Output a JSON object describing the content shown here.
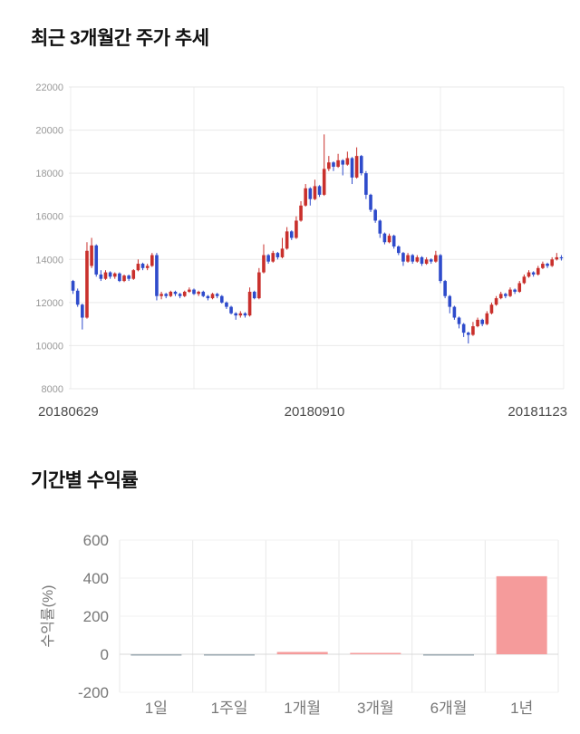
{
  "page": {
    "price_section_title": "최근 3개월간 주가 추세",
    "returns_section_title": "기간별 수익률"
  },
  "chart_data": [
    {
      "type": "candlestick",
      "title": "최근 3개월간 주가 추세",
      "x_tick_labels": [
        "20180629",
        "20180910",
        "20181123"
      ],
      "ylim": [
        8000,
        22000
      ],
      "y_ticks": [
        8000,
        10000,
        12000,
        14000,
        16000,
        18000,
        20000,
        22000
      ],
      "up_color": "#c9302c",
      "down_color": "#2e4bcb",
      "grid": true,
      "candles_format": "[open, high, low, close]",
      "candles": [
        [
          13000,
          13050,
          12400,
          12550
        ],
        [
          12550,
          12650,
          11800,
          11900
        ],
        [
          11900,
          11950,
          10750,
          11300
        ],
        [
          11300,
          14800,
          11250,
          14400
        ],
        [
          13700,
          15000,
          13600,
          14650
        ],
        [
          14650,
          14700,
          13200,
          13300
        ],
        [
          13300,
          13500,
          13000,
          13100
        ],
        [
          13100,
          13500,
          13050,
          13400
        ],
        [
          13400,
          13450,
          13100,
          13200
        ],
        [
          13200,
          13400,
          13100,
          13350
        ],
        [
          13350,
          13400,
          12950,
          13000
        ],
        [
          13000,
          13300,
          12950,
          13250
        ],
        [
          13250,
          13300,
          13000,
          13100
        ],
        [
          13100,
          13550,
          13050,
          13500
        ],
        [
          13500,
          14000,
          13450,
          13800
        ],
        [
          13800,
          13850,
          13500,
          13600
        ],
        [
          13600,
          13800,
          13500,
          13700
        ],
        [
          13700,
          14300,
          13650,
          14200
        ],
        [
          14200,
          14300,
          12100,
          12300
        ],
        [
          12300,
          12500,
          12150,
          12400
        ],
        [
          12400,
          12450,
          12200,
          12300
        ],
        [
          12300,
          12550,
          12250,
          12500
        ],
        [
          12500,
          12550,
          12300,
          12400
        ],
        [
          12400,
          12450,
          12200,
          12300
        ],
        [
          12300,
          12550,
          12250,
          12500
        ],
        [
          12500,
          12700,
          12450,
          12600
        ],
        [
          12600,
          12650,
          12350,
          12400
        ],
        [
          12400,
          12550,
          12300,
          12500
        ],
        [
          12500,
          12550,
          12250,
          12300
        ],
        [
          12300,
          12350,
          12100,
          12200
        ],
        [
          12200,
          12450,
          12150,
          12400
        ],
        [
          12400,
          12450,
          12200,
          12300
        ],
        [
          12300,
          12350,
          11950,
          12000
        ],
        [
          12000,
          12050,
          11700,
          11800
        ],
        [
          11800,
          11850,
          11450,
          11500
        ],
        [
          11500,
          11550,
          11200,
          11400
        ],
        [
          11400,
          11600,
          11300,
          11500
        ],
        [
          11500,
          11550,
          11300,
          11400
        ],
        [
          11400,
          12700,
          11350,
          12500
        ],
        [
          12500,
          12550,
          12150,
          12200
        ],
        [
          12200,
          13600,
          12150,
          13400
        ],
        [
          13400,
          14700,
          13350,
          14200
        ],
        [
          14200,
          14250,
          13800,
          13900
        ],
        [
          13900,
          14400,
          13850,
          14300
        ],
        [
          14300,
          14350,
          14000,
          14100
        ],
        [
          14100,
          15000,
          14050,
          14500
        ],
        [
          14500,
          15500,
          14450,
          15300
        ],
        [
          15300,
          15350,
          14900,
          15000
        ],
        [
          15000,
          16000,
          14950,
          15800
        ],
        [
          15800,
          16700,
          15750,
          16500
        ],
        [
          16500,
          17500,
          16450,
          17300
        ],
        [
          17300,
          17350,
          16500,
          16800
        ],
        [
          16800,
          17700,
          16750,
          17400
        ],
        [
          17400,
          17450,
          16900,
          17000
        ],
        [
          17000,
          19800,
          16950,
          18200
        ],
        [
          18200,
          18800,
          18100,
          18500
        ],
        [
          18500,
          18550,
          18100,
          18300
        ],
        [
          18300,
          18900,
          18250,
          18600
        ],
        [
          18600,
          18650,
          17900,
          18400
        ],
        [
          18400,
          19000,
          18350,
          18700
        ],
        [
          18700,
          18750,
          17500,
          17800
        ],
        [
          17800,
          19200,
          17750,
          18800
        ],
        [
          18800,
          18850,
          17900,
          18000
        ],
        [
          18000,
          18100,
          16800,
          17000
        ],
        [
          17000,
          17050,
          16200,
          16300
        ],
        [
          16300,
          16350,
          15700,
          15800
        ],
        [
          15800,
          15850,
          15000,
          15200
        ],
        [
          15200,
          15250,
          14700,
          14800
        ],
        [
          14800,
          15200,
          14750,
          15100
        ],
        [
          15100,
          15150,
          14500,
          14600
        ],
        [
          14600,
          14650,
          14200,
          14300
        ],
        [
          14300,
          14350,
          13700,
          13900
        ],
        [
          13900,
          14300,
          13850,
          14200
        ],
        [
          14200,
          14250,
          13800,
          13900
        ],
        [
          13900,
          14200,
          13850,
          14100
        ],
        [
          14100,
          14150,
          13700,
          13800
        ],
        [
          13800,
          14100,
          13750,
          14000
        ],
        [
          14000,
          14050,
          13800,
          13900
        ],
        [
          13900,
          14400,
          13850,
          14200
        ],
        [
          14200,
          14250,
          12900,
          13000
        ],
        [
          13000,
          13050,
          12200,
          12300
        ],
        [
          12300,
          12350,
          11500,
          11800
        ],
        [
          11800,
          11850,
          11200,
          11300
        ],
        [
          11300,
          11350,
          10800,
          11000
        ],
        [
          11000,
          11050,
          10400,
          10600
        ],
        [
          10600,
          10650,
          10100,
          10500
        ],
        [
          10500,
          11100,
          10450,
          10900
        ],
        [
          10900,
          11300,
          10850,
          11200
        ],
        [
          11200,
          11250,
          10900,
          11000
        ],
        [
          11000,
          11600,
          10950,
          11500
        ],
        [
          11500,
          12000,
          11450,
          11900
        ],
        [
          11900,
          12300,
          11850,
          12200
        ],
        [
          12200,
          12500,
          12150,
          12400
        ],
        [
          12400,
          12450,
          12200,
          12300
        ],
        [
          12300,
          12700,
          12250,
          12600
        ],
        [
          12600,
          12650,
          12400,
          12500
        ],
        [
          12500,
          13000,
          12450,
          12900
        ],
        [
          12900,
          13300,
          12850,
          13200
        ],
        [
          13200,
          13500,
          13150,
          13400
        ],
        [
          13400,
          13450,
          13200,
          13300
        ],
        [
          13300,
          13700,
          13250,
          13600
        ],
        [
          13600,
          13900,
          13550,
          13800
        ],
        [
          13800,
          13850,
          13600,
          13700
        ],
        [
          13700,
          14100,
          13650,
          14000
        ],
        [
          14000,
          14300,
          13950,
          14100
        ],
        [
          14100,
          14200,
          13950,
          14050
        ]
      ]
    },
    {
      "type": "bar",
      "title": "기간별 수익률",
      "ylabel": "수익률(%)",
      "categories": [
        "1일",
        "1주일",
        "1개월",
        "3개월",
        "6개월",
        "1년"
      ],
      "values": [
        -2,
        -5,
        12,
        2,
        -4,
        410
      ],
      "ylim": [
        -200,
        600
      ],
      "y_ticks": [
        600,
        400,
        200,
        0,
        -200
      ],
      "bar_color_positive": "#f59b9b",
      "bar_color_negative": "#9aa8b0",
      "grid": true,
      "legend": "none"
    }
  ]
}
